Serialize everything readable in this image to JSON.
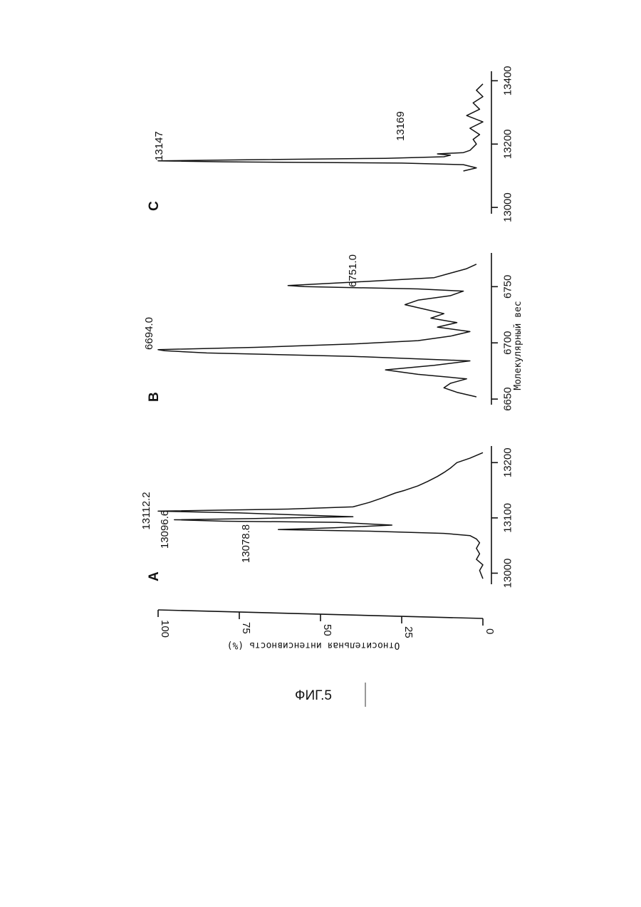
{
  "figure_label": "ФИГ.5",
  "chart_data": [
    {
      "type": "line",
      "panel_label": "A",
      "ylabel": "Относительная интенсивность (%)",
      "xlabel": "",
      "xlim": [
        12980,
        13230
      ],
      "ylim": [
        0,
        100
      ],
      "x_ticks": [
        "13000",
        "13100",
        "13200"
      ],
      "y_ticks": [
        "0",
        "25",
        "50",
        "75",
        "100"
      ],
      "annotations": [
        "13112.2",
        "13096.6",
        "13078.8"
      ],
      "series": [
        {
          "x": [
            12990,
            13005,
            13015,
            13025,
            13035,
            13045,
            13055,
            13062,
            13068,
            13072,
            13076,
            13078.8,
            13082,
            13087,
            13092,
            13094,
            13096.6,
            13099,
            13102,
            13106,
            13109,
            13112.2,
            13116,
            13120,
            13128,
            13136,
            13145,
            13150,
            13158,
            13166,
            13175,
            13182,
            13190,
            13200,
            13208,
            13213,
            13218
          ],
          "y": [
            0,
            1,
            0,
            2,
            1,
            2,
            1,
            2,
            4,
            12,
            35,
            63,
            46,
            28,
            45,
            80,
            95,
            70,
            40,
            60,
            75,
            100,
            60,
            40,
            35,
            31,
            27,
            24,
            20,
            17,
            14,
            12,
            10,
            8,
            4,
            2,
            0
          ]
        }
      ]
    },
    {
      "type": "line",
      "panel_label": "B",
      "ylabel": "",
      "xlabel": "Молекулярный вес",
      "xlim": [
        6645,
        6780
      ],
      "ylim": [
        0,
        100
      ],
      "x_ticks": [
        "6650",
        "6700",
        "6750"
      ],
      "annotations": [
        "6694.0",
        "6751.0"
      ],
      "series": [
        {
          "x": [
            6652,
            6656,
            6660,
            6664,
            6668,
            6672,
            6676,
            6680,
            6684,
            6688,
            6691,
            6693,
            6694,
            6696,
            6699,
            6702,
            6706,
            6710,
            6714,
            6718,
            6722,
            6726,
            6730,
            6734,
            6738,
            6742,
            6746,
            6748,
            6750,
            6751,
            6754,
            6758,
            6762,
            6766,
            6770
          ],
          "y": [
            2,
            8,
            12,
            10,
            5,
            20,
            30,
            15,
            4,
            40,
            85,
            98,
            100,
            70,
            40,
            20,
            10,
            4,
            14,
            8,
            16,
            12,
            18,
            24,
            20,
            10,
            6,
            20,
            55,
            60,
            40,
            15,
            10,
            5,
            2
          ]
        }
      ]
    },
    {
      "type": "line",
      "panel_label": "C",
      "ylabel": "",
      "xlabel": "",
      "xlim": [
        12980,
        13430
      ],
      "ylim": [
        0,
        100
      ],
      "x_ticks": [
        "13000",
        "13200",
        "13400"
      ],
      "annotations": [
        "13147",
        "13169"
      ],
      "series": [
        {
          "x": [
            13115,
            13125,
            13135,
            13140,
            13144,
            13147,
            13150,
            13155,
            13160,
            13165,
            13169,
            13173,
            13180,
            13190,
            13200,
            13215,
            13230,
            13250,
            13270,
            13290,
            13310,
            13330,
            13350,
            13370,
            13390
          ],
          "y": [
            6,
            2,
            6,
            25,
            80,
            100,
            75,
            30,
            12,
            10,
            14,
            6,
            4,
            3,
            2,
            3,
            1,
            4,
            0,
            5,
            1,
            3,
            0,
            2,
            0
          ]
        }
      ]
    }
  ]
}
